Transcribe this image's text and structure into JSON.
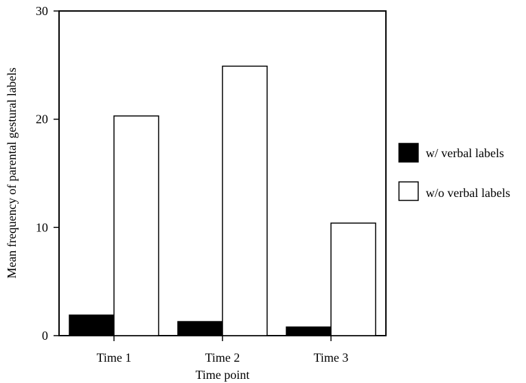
{
  "chart_data": {
    "type": "bar",
    "categories": [
      "Time 1",
      "Time 2",
      "Time 3"
    ],
    "series": [
      {
        "name": "w/ verbal labels",
        "values": [
          1.9,
          1.3,
          0.8
        ],
        "color": "#000000"
      },
      {
        "name": "w/o verbal labels",
        "values": [
          20.3,
          24.9,
          10.4
        ],
        "color": "#ffffff"
      }
    ],
    "xlabel": "Time point",
    "ylabel": "Mean frequency of parental gestural labels",
    "ylim": [
      0,
      30
    ],
    "yticks": [
      0,
      10,
      20,
      30
    ],
    "grid": false,
    "legend_position": "right"
  }
}
